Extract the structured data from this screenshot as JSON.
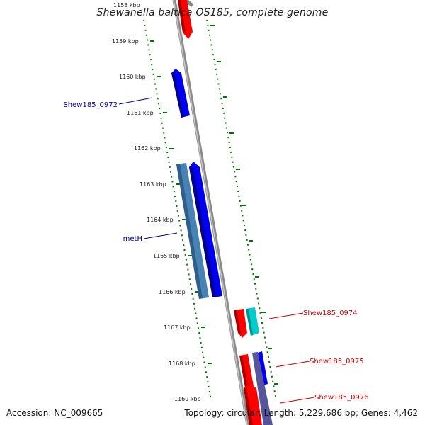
{
  "header": {
    "title": "Shewanella baltica OS185, complete genome"
  },
  "footer": {
    "accession": "Accession: NC_009665",
    "topology": "Topology: circular; Length: 5,229,686 bp; Genes: 4,462"
  },
  "ticks": [
    "1158 kbp",
    "1159 kbp",
    "1160 kbp",
    "1161 kbp",
    "1162 kbp",
    "1163 kbp",
    "1164 kbp",
    "1165 kbp",
    "1166 kbp",
    "1167 kbp",
    "1168 kbp",
    "1169 kbp"
  ],
  "gene_labels": [
    {
      "text": "Shew185_0972",
      "color": "#0000aa"
    },
    {
      "text": "metH",
      "color": "#0000aa"
    },
    {
      "text": "Shew185_0974",
      "color": "#cc0000"
    },
    {
      "text": "Shew185_0975",
      "color": "#cc0000"
    },
    {
      "text": "Shew185_0976",
      "color": "#cc0000"
    }
  ],
  "colors": {
    "tick_green": "#007700",
    "axis_gray": "#888888",
    "gene_blue": "#0000ee",
    "gene_red": "#ff0000",
    "gene_steelblue": "#4682b4",
    "gene_cyan": "#00cccc",
    "gene_slate": "#555599"
  }
}
